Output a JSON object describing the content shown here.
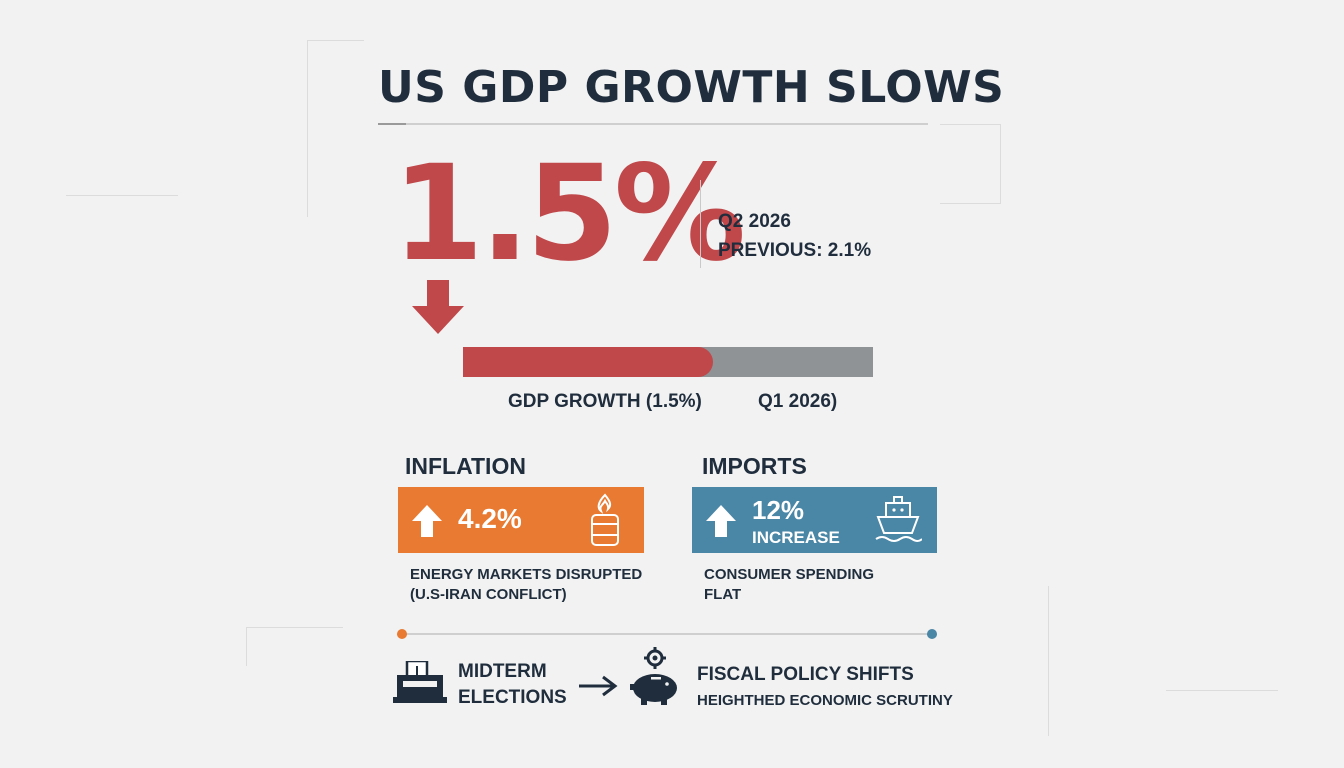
{
  "colors": {
    "accent_red": "#c0474a",
    "orange": "#e87a31",
    "blue": "#4a86a6",
    "gray_bar": "#8f9396",
    "dark_text": "#1f2d3d"
  },
  "headline": "US GDP GROWTH SLOWS",
  "hero": {
    "value": "1.5%",
    "period": "Q2 2026",
    "previous": "PREVIOUS: 2.1%",
    "icon": "down-arrow-icon"
  },
  "progress": {
    "fill_fraction": 0.61,
    "left_label": "GDP GROWTH (1.5%)",
    "right_label": "Q1 2026)"
  },
  "cards": {
    "inflation": {
      "title": "INFLATION",
      "value": "4.2%",
      "icon": "oil-barrel-fire-icon",
      "note_line1": "ENERGY MARKETS DISRUPTED",
      "note_line2": "(U.S-IRAN CONFLICT)"
    },
    "imports": {
      "title": "IMPORTS",
      "value": "12%",
      "sub": "INCREASE",
      "icon": "cargo-ship-icon",
      "note_line1": "CONSUMER SPENDING",
      "note_line2": "FLAT"
    }
  },
  "flow": {
    "left_line1": "MIDTERM",
    "left_line2": "ELECTIONS",
    "left_icon": "ballot-box-icon",
    "right_icon": "piggy-bank-gear-icon",
    "right_title": "FISCAL POLICY SHIFTS",
    "right_sub": "HEIGHTHED ECONOMIC SCRUTINY"
  }
}
